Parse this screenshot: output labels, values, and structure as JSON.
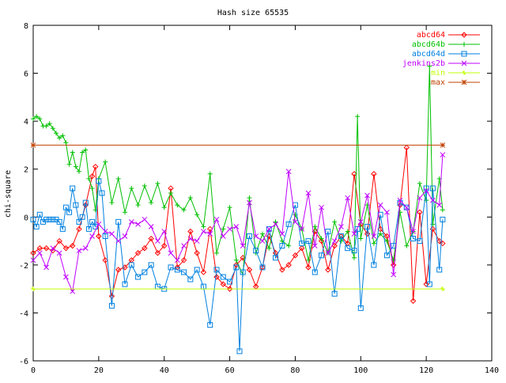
{
  "chart_data": {
    "type": "line",
    "title": "Hash size 65535",
    "xlabel": "",
    "ylabel": "chi-square",
    "xlim": [
      0,
      140
    ],
    "ylim": [
      -6,
      8
    ],
    "xticks": [
      0,
      20,
      40,
      60,
      80,
      100,
      120,
      140
    ],
    "yticks": [
      -6,
      -4,
      -2,
      0,
      2,
      4,
      6,
      8
    ],
    "grid": false,
    "legend": "top-right",
    "series": [
      {
        "name": "abcd64",
        "color": "#ff0000",
        "marker": "diamond",
        "x": [
          0,
          2,
          4,
          6,
          8,
          10,
          12,
          14,
          16,
          18,
          19,
          20,
          22,
          24,
          26,
          28,
          30,
          32,
          34,
          36,
          38,
          40,
          42,
          44,
          46,
          48,
          50,
          52,
          54,
          56,
          58,
          60,
          62,
          64,
          66,
          68,
          70,
          72,
          74,
          76,
          78,
          80,
          82,
          84,
          86,
          88,
          90,
          92,
          94,
          96,
          98,
          100,
          102,
          104,
          106,
          108,
          110,
          112,
          114,
          116,
          118,
          120,
          122,
          124,
          125
        ],
        "y": [
          -1.5,
          -1.3,
          -1.3,
          -1.4,
          -1.0,
          -1.3,
          -1.2,
          -0.5,
          0.5,
          1.7,
          2.1,
          -0.8,
          -1.8,
          -3.3,
          -2.2,
          -2.1,
          -1.8,
          -1.5,
          -1.3,
          -0.9,
          -1.5,
          -1.2,
          1.2,
          -2.1,
          -1.8,
          -0.6,
          -1.5,
          -2.3,
          -0.5,
          -2.5,
          -2.8,
          -3.0,
          -2.0,
          -1.7,
          -2.2,
          -2.9,
          -2.1,
          -0.8,
          -1.5,
          -2.2,
          -2.0,
          -1.6,
          -1.3,
          -2.1,
          -0.6,
          -1.0,
          -2.2,
          -1.2,
          -0.8,
          -1.1,
          1.8,
          -0.3,
          -0.7,
          1.8,
          -0.5,
          -0.8,
          -2.0,
          0.5,
          2.9,
          -3.5,
          0.2,
          -2.8,
          -0.5,
          -1.0,
          -1.1
        ]
      },
      {
        "name": "abcd64b",
        "color": "#00c000",
        "marker": "plus",
        "x": [
          0,
          1,
          2,
          3,
          4,
          5,
          6,
          7,
          8,
          9,
          10,
          11,
          12,
          13,
          14,
          15,
          16,
          17,
          18,
          19,
          20,
          22,
          24,
          26,
          28,
          30,
          32,
          34,
          36,
          38,
          40,
          42,
          44,
          46,
          48,
          50,
          52,
          54,
          56,
          58,
          60,
          62,
          64,
          66,
          68,
          70,
          72,
          74,
          76,
          78,
          80,
          82,
          84,
          86,
          88,
          90,
          92,
          94,
          96,
          98,
          99,
          100,
          102,
          104,
          106,
          108,
          110,
          112,
          114,
          116,
          118,
          120,
          121,
          122,
          124,
          125
        ],
        "y": [
          4.1,
          4.2,
          4.1,
          3.8,
          3.8,
          3.9,
          3.7,
          3.5,
          3.3,
          3.4,
          3.1,
          2.2,
          2.7,
          2.1,
          1.9,
          2.7,
          2.8,
          1.6,
          1.2,
          0.3,
          1.6,
          2.3,
          0.6,
          1.6,
          0.2,
          1.2,
          0.5,
          1.3,
          0.6,
          1.4,
          0.4,
          1.0,
          0.5,
          0.3,
          0.8,
          0.1,
          -0.4,
          1.8,
          -1.5,
          -0.5,
          0.4,
          -1.8,
          -2.4,
          0.8,
          -1.5,
          -0.7,
          -1.3,
          -0.2,
          -1.0,
          -1.2,
          0.1,
          -0.5,
          -1.8,
          -0.4,
          -0.9,
          -1.5,
          -0.2,
          -1.0,
          -0.6,
          -1.7,
          4.2,
          -0.9,
          0.5,
          -1.1,
          -0.7,
          -1.0,
          -1.8,
          0.2,
          -1.2,
          -0.6,
          1.4,
          0.7,
          6.3,
          -0.3,
          1.6,
          0.3
        ]
      },
      {
        "name": "abcd64d",
        "color": "#0080e0",
        "marker": "square",
        "x": [
          0,
          1,
          2,
          3,
          4,
          5,
          6,
          7,
          8,
          9,
          10,
          11,
          12,
          13,
          14,
          15,
          16,
          17,
          18,
          19,
          20,
          21,
          22,
          24,
          26,
          28,
          30,
          32,
          34,
          36,
          38,
          40,
          42,
          44,
          46,
          48,
          50,
          52,
          54,
          56,
          58,
          60,
          62,
          63,
          64,
          66,
          68,
          70,
          72,
          74,
          76,
          78,
          80,
          82,
          84,
          86,
          88,
          90,
          92,
          94,
          96,
          98,
          99,
          100,
          102,
          104,
          106,
          108,
          110,
          112,
          114,
          116,
          118,
          120,
          121,
          122,
          124,
          125
        ],
        "y": [
          -0.1,
          -0.4,
          0.1,
          -0.2,
          -0.1,
          -0.1,
          -0.1,
          -0.1,
          -0.2,
          -0.5,
          0.4,
          0.2,
          1.2,
          0.5,
          -0.2,
          0.0,
          0.6,
          -0.5,
          -0.2,
          -0.4,
          1.5,
          1.0,
          -0.8,
          -3.7,
          -0.2,
          -2.8,
          -2.0,
          -2.5,
          -2.3,
          -2.0,
          -2.9,
          -3.0,
          -2.1,
          -2.2,
          -2.3,
          -2.6,
          -2.2,
          -2.9,
          -4.5,
          -2.2,
          -2.5,
          -2.7,
          -2.1,
          -5.6,
          -2.3,
          -0.8,
          -1.4,
          -2.1,
          -0.5,
          -1.7,
          -1.2,
          -0.3,
          0.5,
          -1.1,
          -1.0,
          -2.3,
          -1.6,
          -0.6,
          -3.2,
          -0.8,
          -1.3,
          -1.4,
          -0.5,
          -3.8,
          -0.4,
          -2.0,
          0.1,
          -1.6,
          -1.2,
          0.6,
          0.4,
          -0.9,
          -1.0,
          1.2,
          -2.8,
          1.2,
          -2.2,
          -0.1
        ]
      },
      {
        "name": "jenkins2b",
        "color": "#c000ff",
        "marker": "cross",
        "x": [
          0,
          2,
          4,
          6,
          8,
          10,
          12,
          14,
          16,
          18,
          20,
          22,
          24,
          26,
          28,
          30,
          32,
          34,
          36,
          38,
          40,
          42,
          44,
          46,
          48,
          50,
          52,
          54,
          56,
          58,
          60,
          62,
          64,
          66,
          68,
          70,
          72,
          74,
          76,
          78,
          80,
          82,
          84,
          86,
          88,
          90,
          92,
          94,
          96,
          98,
          100,
          102,
          104,
          106,
          108,
          110,
          112,
          114,
          116,
          118,
          120,
          122,
          124,
          125
        ],
        "y": [
          -1.8,
          -1.5,
          -2.1,
          -1.3,
          -1.5,
          -2.5,
          -3.1,
          -1.4,
          -1.3,
          -0.8,
          -0.3,
          -0.6,
          -0.7,
          -1.0,
          -0.8,
          -0.2,
          -0.3,
          -0.1,
          -0.4,
          -1.0,
          -0.6,
          -1.5,
          -1.8,
          -1.2,
          -0.9,
          -1.0,
          -0.6,
          -0.7,
          -0.1,
          -0.8,
          -0.5,
          -0.4,
          -1.2,
          0.6,
          -0.8,
          -1.0,
          -0.5,
          -0.3,
          -0.7,
          1.9,
          -0.2,
          -0.5,
          1.0,
          -1.2,
          0.4,
          -1.5,
          -1.0,
          -0.4,
          0.8,
          -0.7,
          -0.2,
          0.9,
          -0.8,
          0.5,
          0.2,
          -2.4,
          0.7,
          0.4,
          -0.6,
          0.8,
          1.1,
          0.7,
          0.5,
          2.6
        ]
      },
      {
        "name": "min",
        "color": "#c0ff00",
        "marker": "star",
        "x": [
          0,
          125
        ],
        "y": [
          -3.0,
          -3.0
        ]
      },
      {
        "name": "max",
        "color": "#c04000",
        "marker": "asterisk",
        "x": [
          0,
          125
        ],
        "y": [
          3.0,
          3.0
        ]
      }
    ]
  }
}
